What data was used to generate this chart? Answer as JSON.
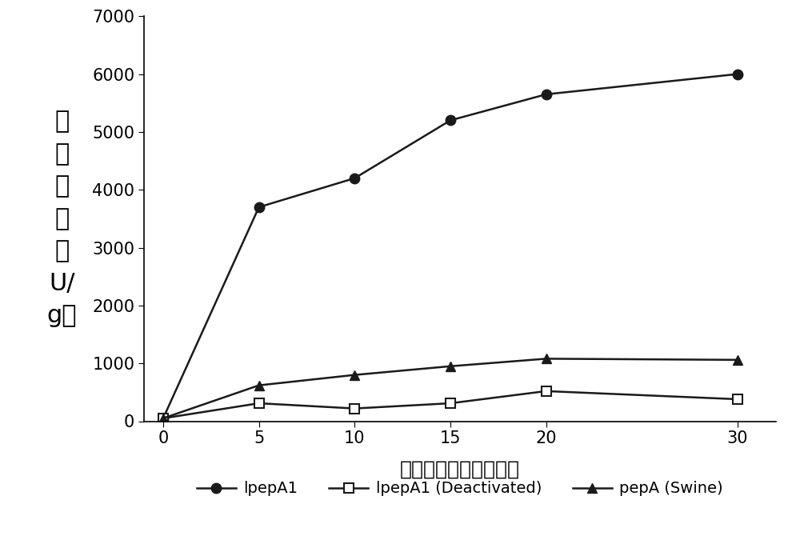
{
  "x": [
    0,
    5,
    10,
    15,
    20,
    30
  ],
  "lpepA1": [
    50,
    3700,
    4200,
    5200,
    5650,
    6000
  ],
  "lpepA1_deactivated": [
    50,
    310,
    220,
    310,
    520,
    380
  ],
  "pepA_swine": [
    50,
    620,
    800,
    950,
    1080,
    1060
  ],
  "xlabel": "反应时间　　（分钟）",
  "ylabel_chars": [
    "表",
    "观",
    "酶",
    "活",
    "（",
    "U/",
    "g）"
  ],
  "legend_lpepA1": "lpepA1",
  "legend_deactivated": "lpepA1 (Deactivated)",
  "legend_swine": "pepA (Swine)",
  "ylim": [
    0,
    7000
  ],
  "yticks": [
    0,
    1000,
    2000,
    3000,
    4000,
    5000,
    6000,
    7000
  ],
  "xticks": [
    0,
    5,
    10,
    15,
    20,
    30
  ],
  "line_color": "#1a1a1a",
  "bg_color": "#ffffff",
  "marker_size": 9,
  "linewidth": 1.8
}
